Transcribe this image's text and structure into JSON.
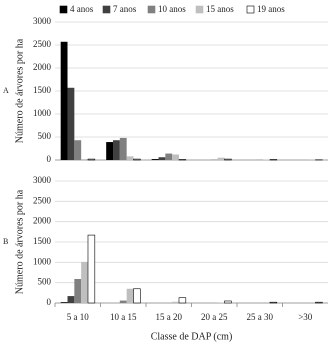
{
  "chart_data": [
    {
      "type": "bar",
      "panel": "A",
      "ylabel": "Número de árvores por ha",
      "categories": [
        null,
        null,
        null,
        null,
        null,
        null
      ],
      "series": [
        {
          "name": "4 anos",
          "color": "#000000",
          "values": [
            2570,
            390,
            20,
            0,
            0,
            0
          ]
        },
        {
          "name": "7 anos",
          "color": "#404040",
          "values": [
            1570,
            430,
            60,
            0,
            0,
            0
          ]
        },
        {
          "name": "10 anos",
          "color": "#808080",
          "values": [
            430,
            480,
            140,
            10,
            5,
            0
          ]
        },
        {
          "name": "15 anos",
          "color": "#bfbfbf",
          "values": [
            20,
            80,
            120,
            50,
            10,
            5
          ]
        },
        {
          "name": "19 anos",
          "color": "#ffffff",
          "values": [
            20,
            20,
            10,
            20,
            10,
            5
          ]
        }
      ],
      "ylim": [
        0,
        3000
      ],
      "yticks": [
        0,
        500,
        1000,
        1500,
        2000,
        2500,
        3000
      ],
      "grid": true
    },
    {
      "type": "bar",
      "panel": "B",
      "ylabel": "Número de árvores por ha",
      "xlabel": "Classe de DAP (cm)",
      "categories": [
        "5 a 10",
        "10 a 15",
        "15 a 20",
        "20 a 25",
        "25 a 30",
        ">30"
      ],
      "series": [
        {
          "color": "#000000",
          "values": [
            20,
            0,
            0,
            0,
            0,
            0
          ]
        },
        {
          "color": "#404040",
          "values": [
            170,
            0,
            0,
            0,
            0,
            0
          ]
        },
        {
          "color": "#808080",
          "values": [
            590,
            60,
            0,
            0,
            0,
            0
          ]
        },
        {
          "color": "#bfbfbf",
          "values": [
            1010,
            350,
            30,
            10,
            0,
            0
          ]
        },
        {
          "color": "#ffffff",
          "values": [
            1670,
            350,
            130,
            50,
            20,
            20
          ]
        }
      ],
      "ylim": [
        0,
        3000
      ],
      "yticks": [
        0,
        500,
        1000,
        1500,
        2000,
        2500,
        3000
      ],
      "grid": true
    }
  ]
}
